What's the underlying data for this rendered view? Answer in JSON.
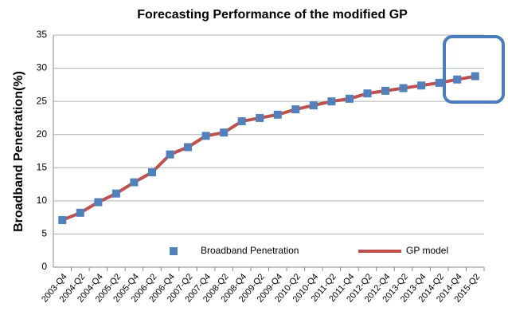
{
  "chart_data": {
    "type": "line",
    "title": "Forecasting Performance of the modified GP",
    "y_label": "Broadband Penetration(%)",
    "categories": [
      "2003-Q4",
      "2004-Q2",
      "2004-Q4",
      "2005-Q2",
      "2005-Q4",
      "2006-Q2",
      "2006-Q4",
      "2007-Q2",
      "2007-Q4",
      "2008-Q2",
      "2008-Q4",
      "2009-Q2",
      "2009-Q4",
      "2010-Q2",
      "2010-Q4",
      "2011-Q2",
      "2011-Q4",
      "2012-Q2",
      "2012-Q4",
      "2013-Q2",
      "2013-Q4",
      "2014-Q2",
      "2014-Q4",
      "2015-Q2"
    ],
    "series": [
      {
        "name": "Broadband Penetration",
        "color": "#4f81bd",
        "marker": "square",
        "values": [
          7.1,
          8.2,
          9.8,
          11.1,
          12.8,
          14.3,
          17.0,
          18.1,
          19.8,
          20.3,
          22.0,
          22.5,
          23.0,
          23.8,
          24.4,
          25.0,
          25.4,
          26.2,
          26.6,
          27.0,
          27.4,
          27.8,
          28.3,
          28.8
        ]
      },
      {
        "name": "GP model",
        "color": "#c0504d",
        "marker": "line",
        "values": [
          7.1,
          8.2,
          9.8,
          11.1,
          12.8,
          14.3,
          17.0,
          18.1,
          19.8,
          20.3,
          22.0,
          22.5,
          23.0,
          23.8,
          24.4,
          25.0,
          25.4,
          26.2,
          26.6,
          27.0,
          27.4,
          27.8,
          28.3,
          28.8
        ]
      }
    ],
    "ylim": [
      0,
      35
    ],
    "yticks": [
      0,
      5,
      10,
      15,
      20,
      25,
      30,
      35
    ],
    "grid": true
  }
}
